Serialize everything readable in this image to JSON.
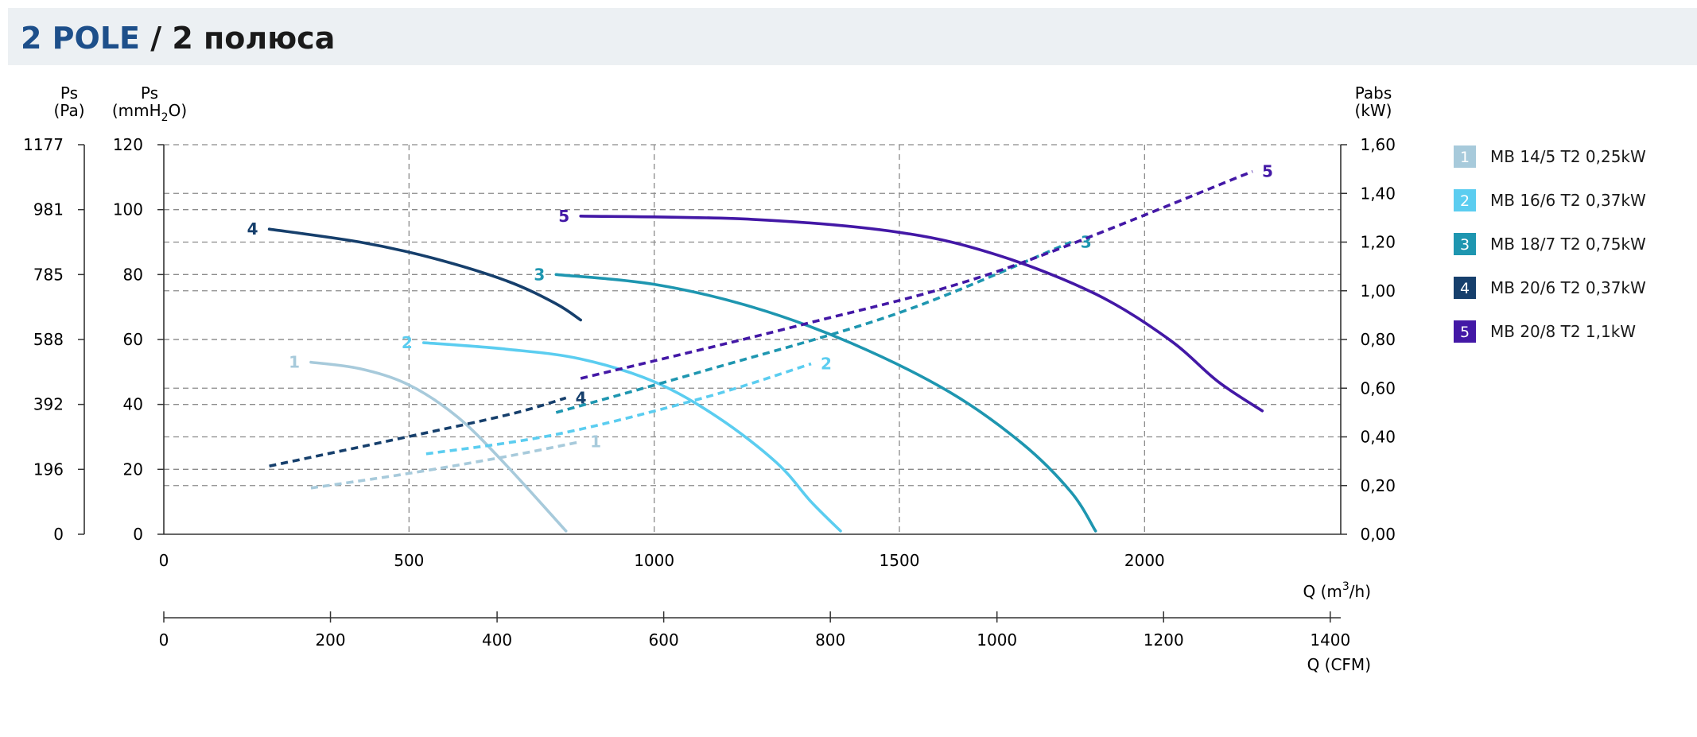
{
  "header": {
    "title_main": "2 POLE",
    "title_sep": "/",
    "title_sub": "2 полюса"
  },
  "chart_data": {
    "type": "line",
    "title": "2 POLE / 2 полюса",
    "axes": {
      "left_outer": {
        "label_line1": "Ps",
        "label_line2": "(Pa)",
        "ticks": [
          "0",
          "196",
          "392",
          "588",
          "785",
          "981",
          "1177"
        ]
      },
      "left_inner": {
        "label_line1": "Ps",
        "label_line2_pre": "(mmH",
        "label_line2_sub": "2",
        "label_line2_post": "O)",
        "ticks": [
          0,
          20,
          40,
          60,
          80,
          100,
          120
        ],
        "ylim": [
          0,
          120
        ]
      },
      "right": {
        "label_line1": "Pabs",
        "label_line2": "(kW)",
        "ticks": [
          "0,00",
          "0,20",
          "0,40",
          "0,60",
          "0,80",
          "1,00",
          "1,20",
          "1,40",
          "1,60"
        ],
        "ylim": [
          0,
          1.6
        ]
      },
      "x_m3h": {
        "label_pre": "Q (m",
        "label_sup": "3",
        "label_post": "/h)",
        "ticks": [
          0,
          500,
          1000,
          1500,
          2000
        ],
        "xlim": [
          0,
          2400
        ]
      },
      "x_cfm": {
        "label": "Q (CFM)",
        "ticks": [
          0,
          200,
          400,
          600,
          800,
          1000,
          1200,
          1400
        ],
        "xlim": [
          0,
          1412.6
        ]
      }
    },
    "grid": true,
    "legend_position": "right",
    "series": [
      {
        "id": "1",
        "name": "MB 14/5 T2 0,25kW",
        "color": "#a7cadb",
        "pressure_mmH2O": [
          [
            300,
            53
          ],
          [
            400,
            51
          ],
          [
            500,
            46
          ],
          [
            600,
            36
          ],
          [
            700,
            21
          ],
          [
            820,
            1
          ]
        ],
        "power_kW": [
          [
            300,
            0.19
          ],
          [
            500,
            0.25
          ],
          [
            700,
            0.32
          ],
          [
            850,
            0.38
          ]
        ]
      },
      {
        "id": "2",
        "name": "MB 16/6 T2 0,37kW",
        "color": "#5bcdf0",
        "pressure_mmH2O": [
          [
            530,
            59
          ],
          [
            700,
            57
          ],
          [
            850,
            54
          ],
          [
            1000,
            47
          ],
          [
            1130,
            36
          ],
          [
            1250,
            22
          ],
          [
            1320,
            10
          ],
          [
            1380,
            1
          ]
        ],
        "power_kW": [
          [
            535,
            0.33
          ],
          [
            800,
            0.41
          ],
          [
            1100,
            0.56
          ],
          [
            1320,
            0.7
          ]
        ]
      },
      {
        "id": "3",
        "name": "MB 18/7 T2 0,75kW",
        "color": "#1e96b0",
        "pressure_mmH2O": [
          [
            800,
            80
          ],
          [
            1000,
            77
          ],
          [
            1200,
            70
          ],
          [
            1400,
            59
          ],
          [
            1600,
            44
          ],
          [
            1750,
            28
          ],
          [
            1850,
            13
          ],
          [
            1900,
            1
          ]
        ],
        "power_kW": [
          [
            800,
            0.5
          ],
          [
            1100,
            0.67
          ],
          [
            1500,
            0.91
          ],
          [
            1850,
            1.2
          ]
        ]
      },
      {
        "id": "4",
        "name": "MB 20/6 T2 0,37kW",
        "color": "#163f6c",
        "pressure_mmH2O": [
          [
            215,
            94
          ],
          [
            400,
            90
          ],
          [
            550,
            85
          ],
          [
            700,
            78
          ],
          [
            800,
            71
          ],
          [
            850,
            66
          ]
        ],
        "power_kW": [
          [
            215,
            0.28
          ],
          [
            450,
            0.38
          ],
          [
            700,
            0.49
          ],
          [
            820,
            0.56
          ]
        ]
      },
      {
        "id": "5",
        "name": "MB 20/8 T2 1,1kW",
        "color": "#4318a6",
        "pressure_mmH2O": [
          [
            850,
            98
          ],
          [
            1200,
            97
          ],
          [
            1500,
            93
          ],
          [
            1700,
            86
          ],
          [
            1900,
            74
          ],
          [
            2050,
            60
          ],
          [
            2150,
            47
          ],
          [
            2240,
            38
          ]
        ],
        "power_kW": [
          [
            850,
            0.64
          ],
          [
            1300,
            0.86
          ],
          [
            1700,
            1.08
          ],
          [
            2220,
            1.49
          ]
        ]
      }
    ]
  }
}
